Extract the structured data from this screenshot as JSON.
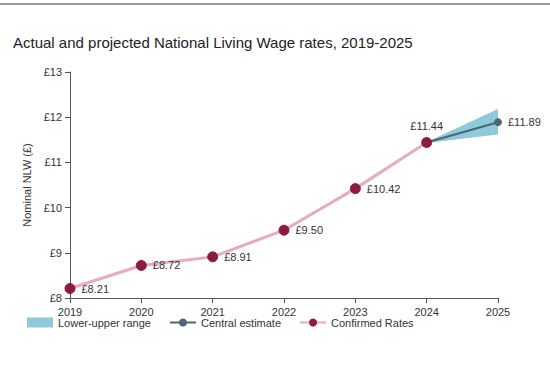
{
  "chart_data": {
    "type": "line",
    "title": "Actual and projected National Living Wage rates, 2019-2025",
    "y_label": "Nominal NLW (£)",
    "categories": [
      "2019",
      "2020",
      "2021",
      "2022",
      "2023",
      "2024",
      "2025"
    ],
    "series": [
      {
        "name": "Lower-upper range",
        "type": "band",
        "color": "#8ec9dc",
        "lower": [
          null,
          null,
          null,
          null,
          null,
          11.44,
          11.63
        ],
        "upper": [
          null,
          null,
          null,
          null,
          null,
          11.44,
          12.17
        ]
      },
      {
        "name": "Central estimate",
        "type": "line",
        "color": "#4b6579",
        "marker": "circle",
        "values": [
          null,
          null,
          null,
          null,
          null,
          11.44,
          11.89
        ],
        "value_labels": [
          null,
          null,
          null,
          null,
          null,
          null,
          "£11.89"
        ]
      },
      {
        "name": "Confirmed Rates",
        "type": "line",
        "color": "#e8abbc",
        "marker": "circle",
        "values": [
          8.21,
          8.72,
          8.91,
          9.5,
          10.42,
          11.44,
          null
        ],
        "value_labels": [
          "£8.21",
          "£8.72",
          "£8.91",
          "£9.50",
          "£10.42",
          "£11.44",
          null
        ]
      }
    ],
    "ylim": [
      8,
      13
    ],
    "yticks": [
      {
        "value": 8,
        "label": "£8"
      },
      {
        "value": 9,
        "label": "£9"
      },
      {
        "value": 10,
        "label": "£10"
      },
      {
        "value": 11,
        "label": "£11"
      },
      {
        "value": 12,
        "label": "£12"
      },
      {
        "value": 13,
        "label": "£13"
      }
    ],
    "grid": false,
    "legend": "bottom",
    "data_labels": true
  }
}
